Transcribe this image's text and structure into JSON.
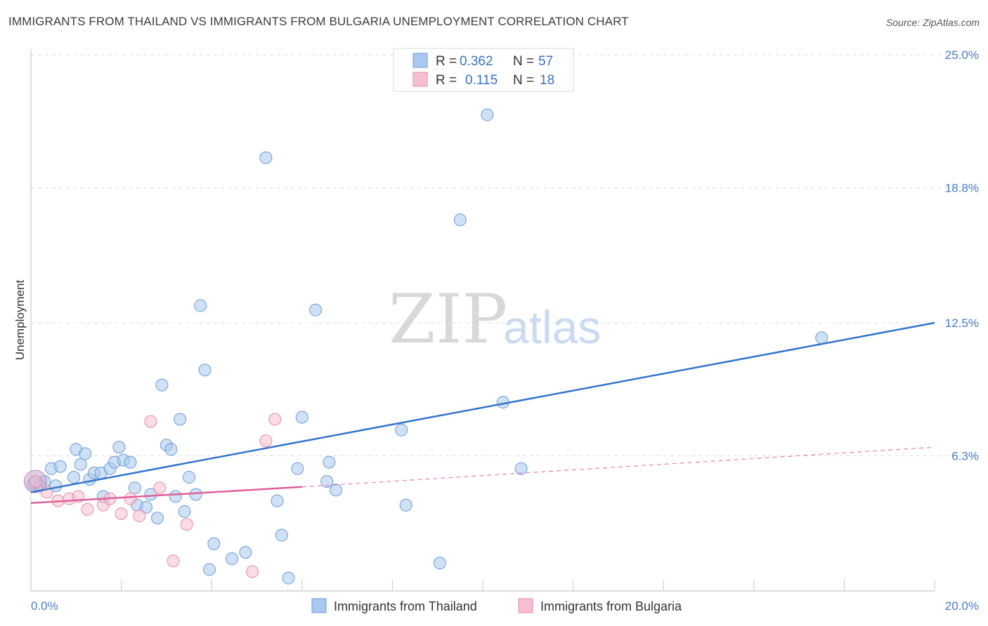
{
  "title": "IMMIGRANTS FROM THAILAND VS IMMIGRANTS FROM BULGARIA UNEMPLOYMENT CORRELATION CHART",
  "source": "Source: ZipAtlas.com",
  "watermark": {
    "zip": "ZIP",
    "atlas": "atlas"
  },
  "colors": {
    "thailand_fill": "#a9c8ef",
    "thailand_stroke": "#6a9bd8",
    "thailand_line": "#3374cc",
    "bulgaria_fill": "#f6bfd0",
    "bulgaria_stroke": "#e98aa8",
    "bulgaria_line": "#e0609a",
    "grid": "#dddddd",
    "tick_label": "#4a7cc7"
  },
  "legend": {
    "rows": [
      {
        "r_label": "R =",
        "r_value": "0.362",
        "n_label": "N =",
        "n_value": "57"
      },
      {
        "r_label": "R =",
        "r_value": "0.115",
        "n_label": "N =",
        "n_value": "18"
      }
    ]
  },
  "bottom_legend": {
    "thailand": "Immigrants from Thailand",
    "bulgaria": "Immigrants from Bulgaria"
  },
  "chart_data": {
    "type": "scatter",
    "title": "IMMIGRANTS FROM THAILAND VS IMMIGRANTS FROM BULGARIA UNEMPLOYMENT CORRELATION CHART",
    "xlabel": "",
    "ylabel": "Unemployment",
    "xlim": [
      0,
      20
    ],
    "ylim": [
      0,
      25
    ],
    "x_tick_labels": [
      "0.0%",
      "20.0%"
    ],
    "y_ticks": [
      6.3,
      12.5,
      18.8,
      25.0
    ],
    "y_tick_labels": [
      "6.3%",
      "12.5%",
      "18.8%",
      "25.0%"
    ],
    "grid": true,
    "legend_position": "top-center",
    "series": [
      {
        "name": "Immigrants from Thailand",
        "r": 0.362,
        "n": 57,
        "trend": {
          "x": [
            0,
            20
          ],
          "y": [
            4.6,
            12.5
          ]
        },
        "points": [
          [
            0.1,
            5.1
          ],
          [
            0.3,
            5.1
          ],
          [
            0.45,
            5.7
          ],
          [
            0.65,
            5.8
          ],
          [
            0.95,
            5.3
          ],
          [
            1.0,
            6.6
          ],
          [
            1.1,
            5.9
          ],
          [
            1.2,
            6.4
          ],
          [
            1.3,
            5.2
          ],
          [
            1.4,
            5.5
          ],
          [
            1.55,
            5.5
          ],
          [
            1.6,
            4.4
          ],
          [
            1.75,
            5.7
          ],
          [
            1.85,
            6.0
          ],
          [
            1.95,
            6.7
          ],
          [
            2.05,
            6.1
          ],
          [
            2.2,
            6.0
          ],
          [
            2.3,
            4.8
          ],
          [
            2.35,
            4.0
          ],
          [
            2.55,
            3.9
          ],
          [
            2.65,
            4.5
          ],
          [
            2.8,
            3.4
          ],
          [
            2.9,
            9.6
          ],
          [
            3.0,
            6.8
          ],
          [
            3.1,
            6.6
          ],
          [
            3.2,
            4.4
          ],
          [
            3.3,
            8.0
          ],
          [
            3.4,
            3.7
          ],
          [
            3.5,
            5.3
          ],
          [
            3.65,
            4.5
          ],
          [
            3.75,
            13.3
          ],
          [
            3.85,
            10.3
          ],
          [
            3.95,
            1.0
          ],
          [
            4.05,
            2.2
          ],
          [
            4.45,
            1.5
          ],
          [
            4.75,
            1.8
          ],
          [
            5.2,
            20.2
          ],
          [
            5.45,
            4.2
          ],
          [
            5.55,
            2.6
          ],
          [
            5.7,
            0.6
          ],
          [
            5.9,
            5.7
          ],
          [
            6.0,
            8.1
          ],
          [
            6.3,
            13.1
          ],
          [
            6.55,
            5.1
          ],
          [
            6.6,
            6.0
          ],
          [
            6.75,
            4.7
          ],
          [
            8.2,
            7.5
          ],
          [
            8.3,
            4.0
          ],
          [
            9.05,
            1.3
          ],
          [
            9.5,
            17.3
          ],
          [
            10.1,
            22.2
          ],
          [
            10.45,
            8.8
          ],
          [
            10.85,
            5.7
          ],
          [
            17.5,
            11.8
          ],
          [
            0.05,
            5.0
          ],
          [
            0.2,
            4.9
          ],
          [
            0.55,
            4.9
          ]
        ]
      },
      {
        "name": "Immigrants from Bulgaria",
        "r": 0.115,
        "n": 18,
        "trend": {
          "x": [
            0,
            6.0
          ],
          "y": [
            4.1,
            4.85
          ]
        },
        "trend_dashed": {
          "x": [
            6.0,
            20
          ],
          "y": [
            4.85,
            6.7
          ]
        },
        "points": [
          [
            0.1,
            5.1
          ],
          [
            0.35,
            4.6
          ],
          [
            0.6,
            4.2
          ],
          [
            0.85,
            4.3
          ],
          [
            1.05,
            4.4
          ],
          [
            1.25,
            3.8
          ],
          [
            1.6,
            4.0
          ],
          [
            1.75,
            4.3
          ],
          [
            2.0,
            3.6
          ],
          [
            2.2,
            4.3
          ],
          [
            2.4,
            3.5
          ],
          [
            2.65,
            7.9
          ],
          [
            2.85,
            4.8
          ],
          [
            3.15,
            1.4
          ],
          [
            3.45,
            3.1
          ],
          [
            4.9,
            0.9
          ],
          [
            5.2,
            7.0
          ],
          [
            5.4,
            8.0
          ]
        ]
      }
    ]
  }
}
